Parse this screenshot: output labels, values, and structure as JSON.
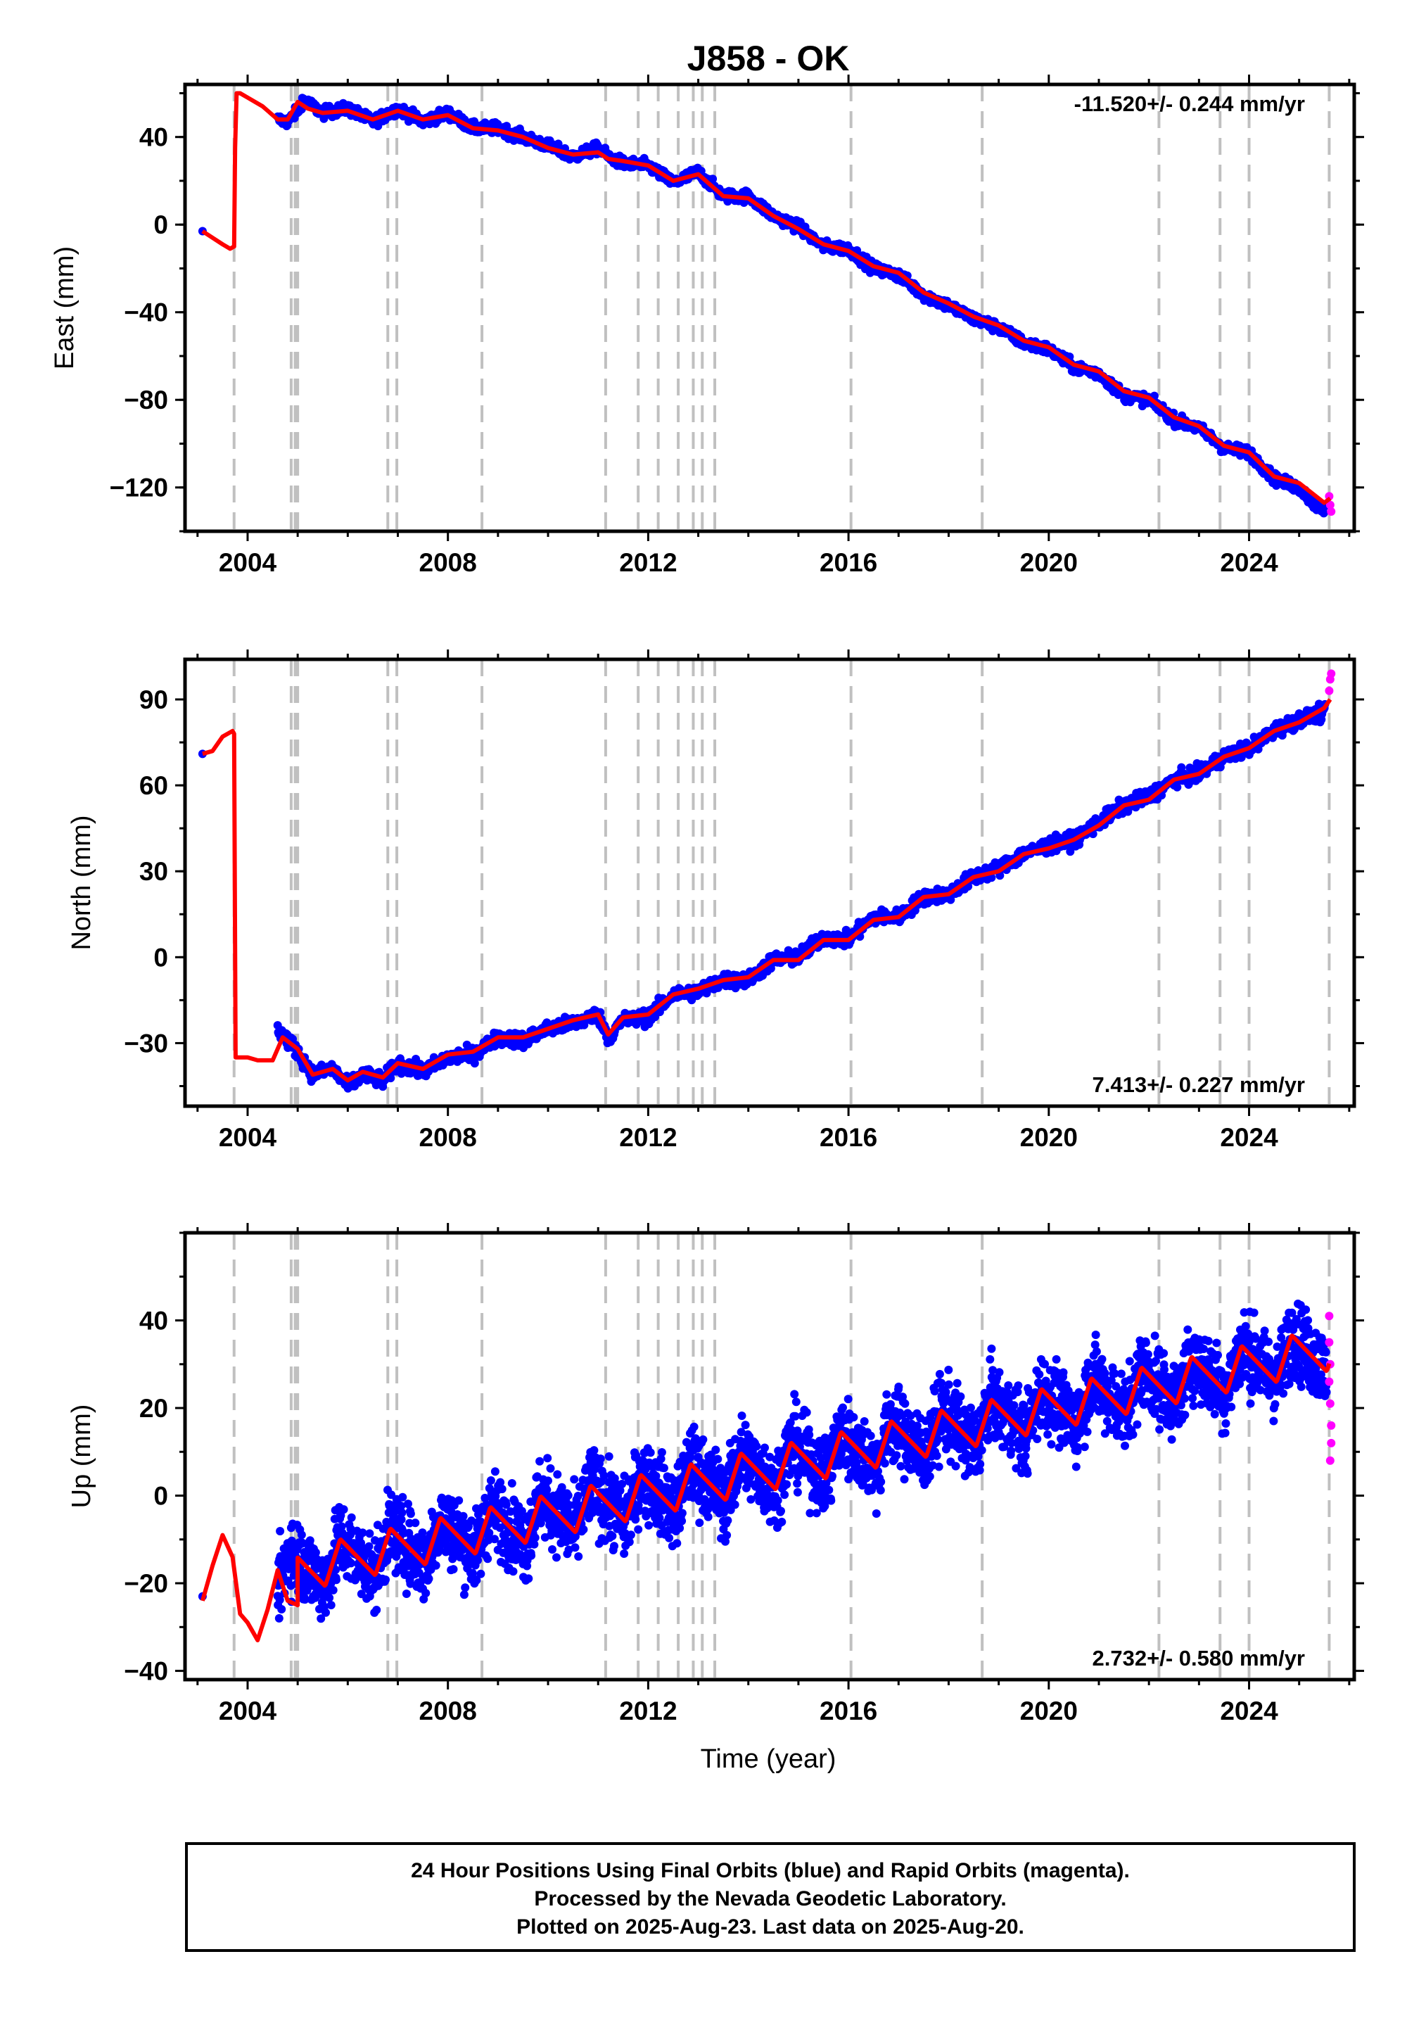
{
  "title": "J858 - OK",
  "xlabel": "Time (year)",
  "footer": {
    "line1": "24 Hour Positions Using Final Orbits (blue) and Rapid Orbits (magenta).",
    "line2": "Processed by the Nevada Geodetic Laboratory.",
    "line3": "Plotted on 2025-Aug-23. Last data on 2025-Aug-20."
  },
  "colors": {
    "final_orbits": "#0000ff",
    "rapid_orbits": "#ff00ff",
    "model_fit": "#ff0000",
    "event_lines": "#c0c0c0"
  },
  "chart_data": [
    {
      "type": "scatter",
      "panel": "east",
      "ylabel": "East (mm)",
      "rate": "-11.520+/- 0.244 mm/yr",
      "rate_position": "top-right",
      "xlim": [
        2002.75,
        2026.1
      ],
      "ylim": [
        -140,
        64
      ],
      "xticks": [
        2004,
        2008,
        2012,
        2016,
        2020,
        2024
      ],
      "xticklabels": [
        "2004",
        "2008",
        "2012",
        "2016",
        "2020",
        "2024"
      ],
      "yticks": [
        40,
        0,
        -40,
        -80,
        -120
      ],
      "yticklabels": [
        "40",
        "0",
        "−40",
        "−80",
        "−120"
      ],
      "event_lines": [
        2003.73,
        2004.87,
        2004.95,
        2005.0,
        2006.8,
        2006.98,
        2008.68,
        2011.15,
        2011.8,
        2012.2,
        2012.6,
        2012.9,
        2013.08,
        2013.33,
        2016.05,
        2018.67,
        2022.2,
        2023.42,
        2024.0,
        2025.6
      ],
      "series": [
        {
          "kind": "final_orbits",
          "x": [
            2003.1,
            2004.6,
            2004.8,
            2005.0,
            2005.1,
            2005.5,
            2006.0,
            2006.5,
            2007.0,
            2007.5,
            2008.0,
            2008.5,
            2009.0,
            2009.5,
            2010.0,
            2010.5,
            2011.0,
            2011.2,
            2011.5,
            2012.0,
            2012.5,
            2013.0,
            2013.5,
            2014.0,
            2014.5,
            2015.0,
            2015.5,
            2016.0,
            2016.5,
            2017.0,
            2017.5,
            2018.0,
            2018.5,
            2019.0,
            2019.5,
            2020.0,
            2020.5,
            2021.0,
            2021.5,
            2022.0,
            2022.5,
            2023.0,
            2023.5,
            2024.0,
            2024.5,
            2025.0,
            2025.4
          ],
          "y": [
            -3,
            48,
            47,
            52,
            57,
            51,
            53,
            47,
            53,
            47,
            51,
            44,
            44,
            40,
            36,
            31,
            35,
            31,
            28,
            27,
            19,
            24,
            13,
            13,
            4,
            -1,
            -10,
            -11,
            -20,
            -23,
            -32,
            -37,
            -43,
            -47,
            -54,
            -57,
            -65,
            -68,
            -78,
            -80,
            -89,
            -93,
            -102,
            -104,
            -116,
            -120,
            -130
          ]
        },
        {
          "kind": "model_fit",
          "x": [
            2003.1,
            2003.3,
            2003.5,
            2003.65,
            2003.73,
            2003.75,
            2003.78,
            2003.85,
            2004.0,
            2004.3,
            2004.6,
            2004.8,
            2005.0,
            2005.2,
            2005.5,
            2006.0,
            2006.5,
            2007.0,
            2007.5,
            2008.0,
            2008.5,
            2009.0,
            2009.5,
            2010.0,
            2010.5,
            2011.0,
            2011.2,
            2011.5,
            2012.0,
            2012.5,
            2013.0,
            2013.5,
            2014.0,
            2014.5,
            2015.0,
            2015.5,
            2016.0,
            2016.5,
            2017.0,
            2017.5,
            2018.0,
            2018.5,
            2019.0,
            2019.5,
            2020.0,
            2020.5,
            2021.0,
            2021.5,
            2022.0,
            2022.5,
            2023.0,
            2023.5,
            2024.0,
            2024.5,
            2025.0,
            2025.5,
            2025.62
          ],
          "y": [
            -3,
            -6,
            -9,
            -11,
            -10,
            35,
            60,
            60,
            58,
            54,
            48,
            48,
            56,
            53,
            51,
            52,
            48,
            52,
            48,
            50,
            44,
            43,
            40,
            35,
            32,
            33,
            30,
            29,
            27,
            20,
            23,
            13,
            12,
            4,
            -2,
            -9,
            -12,
            -19,
            -22,
            -31,
            -36,
            -42,
            -46,
            -53,
            -56,
            -64,
            -67,
            -76,
            -79,
            -88,
            -92,
            -101,
            -104,
            -115,
            -118,
            -127,
            -125
          ]
        },
        {
          "kind": "rapid_orbits",
          "x": [
            2025.6,
            2025.62,
            2025.64
          ],
          "y": [
            -124,
            -128,
            -131
          ]
        }
      ]
    },
    {
      "type": "scatter",
      "panel": "north",
      "ylabel": "North (mm)",
      "rate": "7.413+/- 0.227 mm/yr",
      "rate_position": "bottom-right",
      "xlim": [
        2002.75,
        2026.1
      ],
      "ylim": [
        -52,
        104
      ],
      "xticks": [
        2004,
        2008,
        2012,
        2016,
        2020,
        2024
      ],
      "xticklabels": [
        "2004",
        "2008",
        "2012",
        "2016",
        "2020",
        "2024"
      ],
      "yticks": [
        90,
        60,
        30,
        0,
        -30
      ],
      "yticklabels": [
        "90",
        "60",
        "30",
        "0",
        "−30"
      ],
      "event_lines": [
        2003.73,
        2004.87,
        2004.95,
        2005.0,
        2006.8,
        2006.98,
        2008.68,
        2011.15,
        2011.8,
        2012.2,
        2012.6,
        2012.9,
        2013.08,
        2013.33,
        2016.05,
        2018.67,
        2022.2,
        2023.42,
        2024.0,
        2025.6
      ],
      "series": [
        {
          "kind": "final_orbits",
          "x": [
            2003.1,
            2004.6,
            2004.8,
            2005.0,
            2005.3,
            2005.7,
            2006.0,
            2006.3,
            2006.7,
            2007.0,
            2007.5,
            2008.0,
            2008.5,
            2009.0,
            2009.5,
            2010.0,
            2010.5,
            2011.0,
            2011.2,
            2011.5,
            2012.0,
            2012.5,
            2013.0,
            2013.5,
            2014.0,
            2014.5,
            2015.0,
            2015.5,
            2016.0,
            2016.5,
            2017.0,
            2017.5,
            2018.0,
            2018.5,
            2019.0,
            2019.5,
            2020.0,
            2020.5,
            2021.0,
            2021.5,
            2022.0,
            2022.5,
            2023.0,
            2023.5,
            2024.0,
            2024.5,
            2025.0,
            2025.4
          ],
          "y": [
            71,
            -25,
            -29,
            -33,
            -41,
            -39,
            -45,
            -41,
            -43,
            -37,
            -40,
            -35,
            -34,
            -28,
            -29,
            -25,
            -23,
            -20,
            -28,
            -22,
            -21,
            -13,
            -12,
            -8,
            -8,
            -1,
            0,
            7,
            6,
            14,
            14,
            21,
            22,
            28,
            31,
            36,
            39,
            41,
            47,
            53,
            56,
            62,
            64,
            70,
            73,
            79,
            83,
            85
          ]
        },
        {
          "kind": "model_fit",
          "x": [
            2003.1,
            2003.3,
            2003.5,
            2003.7,
            2003.73,
            2003.76,
            2004.0,
            2004.2,
            2004.5,
            2004.7,
            2005.0,
            2005.3,
            2005.7,
            2006.0,
            2006.3,
            2006.7,
            2007.0,
            2007.5,
            2008.0,
            2008.5,
            2009.0,
            2009.5,
            2010.0,
            2010.5,
            2011.0,
            2011.2,
            2011.5,
            2012.0,
            2012.5,
            2013.0,
            2013.5,
            2014.0,
            2014.5,
            2015.0,
            2015.5,
            2016.0,
            2016.5,
            2017.0,
            2017.5,
            2018.0,
            2018.5,
            2019.0,
            2019.5,
            2020.0,
            2020.5,
            2021.0,
            2021.5,
            2022.0,
            2022.5,
            2023.0,
            2023.5,
            2024.0,
            2024.5,
            2025.0,
            2025.5,
            2025.62
          ],
          "y": [
            71,
            72,
            77,
            79,
            78,
            -35,
            -35,
            -36,
            -36,
            -28,
            -32,
            -41,
            -39,
            -43,
            -40,
            -42,
            -37,
            -39,
            -34,
            -33,
            -28,
            -28,
            -25,
            -22,
            -20,
            -27,
            -21,
            -20,
            -13,
            -11,
            -8,
            -7,
            -1,
            -1,
            6,
            6,
            13,
            14,
            21,
            22,
            28,
            30,
            36,
            38,
            41,
            46,
            53,
            55,
            62,
            64,
            70,
            73,
            79,
            82,
            87,
            90
          ]
        },
        {
          "kind": "rapid_orbits",
          "x": [
            2025.6,
            2025.62,
            2025.64
          ],
          "y": [
            93,
            97,
            99
          ]
        }
      ]
    },
    {
      "type": "scatter",
      "panel": "up",
      "ylabel": "Up (mm)",
      "rate": "2.732+/- 0.580 mm/yr",
      "rate_position": "bottom-right",
      "xlim": [
        2002.75,
        2026.1
      ],
      "ylim": [
        -42,
        60
      ],
      "xticks": [
        2004,
        2008,
        2012,
        2016,
        2020,
        2024
      ],
      "xticklabels": [
        "2004",
        "2008",
        "2012",
        "2016",
        "2020",
        "2024"
      ],
      "yticks": [
        40,
        20,
        0,
        -20,
        -40
      ],
      "yticklabels": [
        "40",
        "20",
        "0",
        "−20",
        "−40"
      ],
      "event_lines": [
        2003.73,
        2004.87,
        2004.95,
        2005.0,
        2006.8,
        2006.98,
        2008.68,
        2011.15,
        2011.8,
        2012.2,
        2012.6,
        2012.9,
        2013.08,
        2013.33,
        2016.05,
        2018.67,
        2022.2,
        2023.42,
        2024.0,
        2025.6
      ],
      "fit_seasonal": {
        "phase": 0.55,
        "amplitude": 5,
        "start": 2005.0,
        "baseline_start": -17,
        "baseline_slope": 2.45,
        "end": 2025.6
      },
      "scatter_spread": 8,
      "series": [
        {
          "kind": "final_orbits",
          "x": [
            2003.1
          ],
          "y": [
            -23
          ]
        },
        {
          "kind": "model_fit_early",
          "x": [
            2003.1,
            2003.3,
            2003.5,
            2003.7,
            2003.85,
            2004.0,
            2004.2,
            2004.4,
            2004.6,
            2004.8,
            2005.0
          ],
          "y": [
            -24,
            -16,
            -9,
            -14,
            -27,
            -29,
            -33,
            -26,
            -17,
            -24,
            -25
          ]
        },
        {
          "kind": "rapid_orbits",
          "x": [
            2025.6,
            2025.6,
            2025.62,
            2025.62,
            2025.64,
            2025.64,
            2025.6,
            2025.62
          ],
          "y": [
            41,
            35,
            30,
            21,
            16,
            12,
            26,
            8
          ]
        }
      ]
    }
  ]
}
